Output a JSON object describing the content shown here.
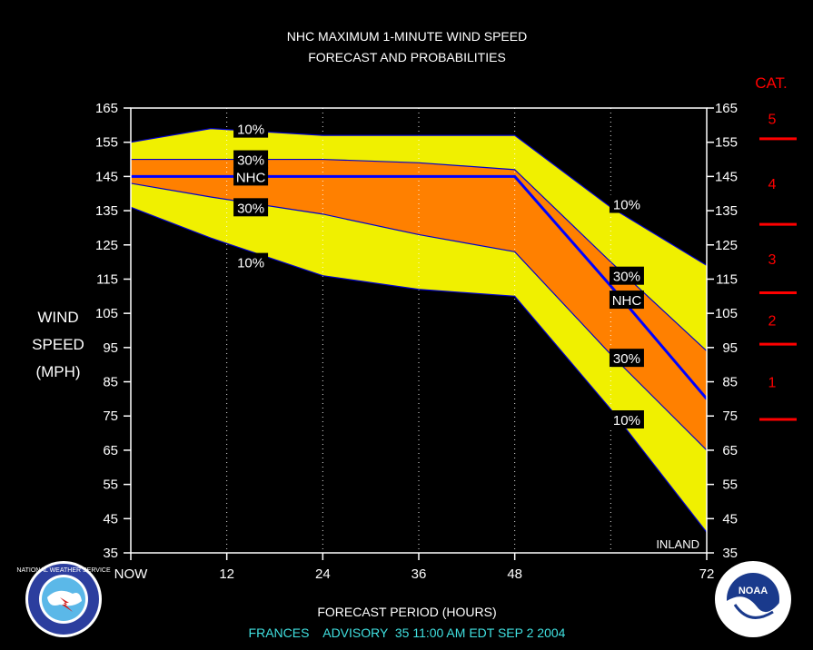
{
  "chart_data": {
    "type": "area",
    "title": "NHC MAXIMUM 1-MINUTE WIND SPEED",
    "subtitle": "FORECAST AND PROBABILITIES",
    "xlabel": "FORECAST PERIOD (HOURS)",
    "ylabel_lines": [
      "WIND",
      "SPEED",
      "(MPH)"
    ],
    "footer": "FRANCES    ADVISORY  35 11:00 AM EDT SEP 2 2004",
    "x_ticks": [
      {
        "x": 0,
        "label": "NOW"
      },
      {
        "x": 12,
        "label": "12"
      },
      {
        "x": 24,
        "label": "24"
      },
      {
        "x": 36,
        "label": "36"
      },
      {
        "x": 48,
        "label": "48"
      },
      {
        "x": 72,
        "label": "72"
      }
    ],
    "xlim": [
      0,
      72
    ],
    "ylim": [
      35,
      165
    ],
    "y_ticks": [
      165,
      155,
      145,
      135,
      125,
      115,
      105,
      95,
      85,
      75,
      65,
      55,
      45,
      35
    ],
    "grid_x": [
      12,
      24,
      36,
      48,
      60
    ],
    "x": [
      0,
      10,
      24,
      36,
      48,
      60,
      72
    ],
    "series": [
      {
        "key": "upper10",
        "values": [
          155,
          159,
          157,
          157,
          157,
          136,
          119
        ]
      },
      {
        "key": "upper30",
        "values": [
          150,
          150,
          150,
          149,
          147,
          120,
          94
        ]
      },
      {
        "key": "nhc",
        "values": [
          145,
          145,
          145,
          145,
          145,
          113,
          80
        ]
      },
      {
        "key": "lower30",
        "values": [
          143,
          139,
          134,
          128,
          123,
          93,
          65
        ]
      },
      {
        "key": "lower10",
        "values": [
          136,
          127,
          116,
          112,
          110,
          77,
          41
        ]
      }
    ],
    "band_labels": [
      {
        "text": "10%",
        "x": 15,
        "y": 159
      },
      {
        "text": "30%",
        "x": 15,
        "y": 150
      },
      {
        "text": "NHC",
        "x": 15,
        "y": 145
      },
      {
        "text": "30%",
        "x": 15,
        "y": 136
      },
      {
        "text": "10%",
        "x": 15,
        "y": 120
      },
      {
        "text": "10%",
        "x": 62,
        "y": 137
      },
      {
        "text": "30%",
        "x": 62,
        "y": 116
      },
      {
        "text": "NHC",
        "x": 62,
        "y": 109
      },
      {
        "text": "30%",
        "x": 62,
        "y": 92
      },
      {
        "text": "10%",
        "x": 62,
        "y": 74
      }
    ],
    "annotation": "INLAND",
    "categories_title": "CAT.",
    "category_boundaries": [
      156,
      131,
      111,
      96,
      74
    ],
    "category_labels": [
      {
        "label": "5",
        "mph": 162
      },
      {
        "label": "4",
        "mph": 143
      },
      {
        "label": "3",
        "mph": 121
      },
      {
        "label": "2",
        "mph": 103
      },
      {
        "label": "1",
        "mph": 85
      }
    ],
    "colors": {
      "outer_band": "#f0f000",
      "inner_band": "#ff8000",
      "nhc_line": "#0000ff",
      "edge_line": "#0000cc",
      "category": "#ff0000",
      "footer": "#40e0e0",
      "frame": "#ffffff",
      "background": "#000000"
    }
  },
  "logos": {
    "left": {
      "text": "NATIONAL WEATHER SERVICE",
      "icon": "nws-logo"
    },
    "right": {
      "text": "NOAA",
      "icon": "noaa-logo"
    }
  }
}
